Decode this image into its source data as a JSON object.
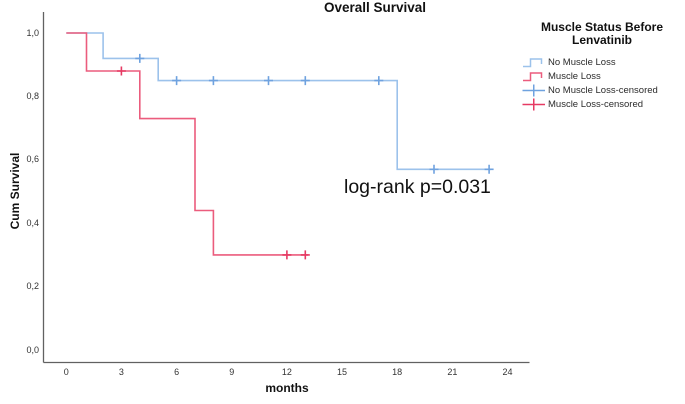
{
  "title": "Overall Survival",
  "annotation": "log-rank p=0.031",
  "axes": {
    "x": {
      "label": "months",
      "ticks": [
        "0",
        "3",
        "6",
        "9",
        "12",
        "15",
        "18",
        "21",
        "24"
      ]
    },
    "y": {
      "label": "Cum Survival",
      "ticks": [
        "0,0",
        "0,2",
        "0,4",
        "0,6",
        "0,8",
        "1,0"
      ]
    }
  },
  "legend": {
    "title_line1": "Muscle Status Before",
    "title_line2": "Lenvatinib",
    "entries": [
      {
        "label": "No Muscle Loss",
        "type": "step",
        "color": "#9CC2EB"
      },
      {
        "label": "Muscle Loss",
        "type": "step",
        "color": "#EB5C7D"
      },
      {
        "label": "No Muscle Loss-censored",
        "type": "plus",
        "color": "#6FA2DF"
      },
      {
        "label": "Muscle Loss-censored",
        "type": "plus",
        "color": "#E63A63"
      }
    ]
  },
  "colors": {
    "axis": "#616161",
    "no_muscle_loss_line": "#9CC2EB",
    "no_muscle_loss_marker": "#6FA2DF",
    "muscle_loss_line": "#EB5C7D",
    "muscle_loss_marker": "#E63A63"
  },
  "chart_data": {
    "type": "line",
    "subtype": "kaplan_meier_step",
    "title": "Overall Survival",
    "xlabel": "months",
    "ylabel": "Cum Survival",
    "xlim": [
      0,
      24
    ],
    "ylim": [
      0.0,
      1.0
    ],
    "x_ticks": [
      0,
      3,
      6,
      9,
      12,
      15,
      18,
      21,
      24
    ],
    "y_ticks": [
      0.0,
      0.2,
      0.4,
      0.6,
      0.8,
      1.0
    ],
    "grid": false,
    "legend_position": "right",
    "annotation": "log-rank p=0.031",
    "series": [
      {
        "key": "no-muscle-loss",
        "name": "No Muscle Loss",
        "color": "#9CC2EB",
        "marker_color": "#6FA2DF",
        "steps": [
          [
            0,
            1.0
          ],
          [
            2,
            1.0
          ],
          [
            2,
            0.92
          ],
          [
            5,
            0.92
          ],
          [
            5,
            0.85
          ],
          [
            18,
            0.85
          ],
          [
            18,
            0.57
          ],
          [
            23.1,
            0.57
          ]
        ],
        "censored": [
          [
            4,
            0.92
          ],
          [
            6,
            0.85
          ],
          [
            8,
            0.85
          ],
          [
            11,
            0.85
          ],
          [
            13,
            0.85
          ],
          [
            17,
            0.85
          ],
          [
            20,
            0.57
          ],
          [
            23,
            0.57
          ]
        ]
      },
      {
        "key": "muscle-loss",
        "name": "Muscle Loss",
        "color": "#EB5C7D",
        "marker_color": "#E63A63",
        "steps": [
          [
            0,
            1.0
          ],
          [
            1.1,
            1.0
          ],
          [
            1.1,
            0.88
          ],
          [
            4,
            0.88
          ],
          [
            4,
            0.73
          ],
          [
            7,
            0.73
          ],
          [
            7,
            0.44
          ],
          [
            8,
            0.44
          ],
          [
            8,
            0.3
          ],
          [
            13.15,
            0.3
          ]
        ],
        "censored": [
          [
            3,
            0.88
          ],
          [
            12,
            0.3
          ],
          [
            13,
            0.3
          ]
        ]
      }
    ]
  }
}
